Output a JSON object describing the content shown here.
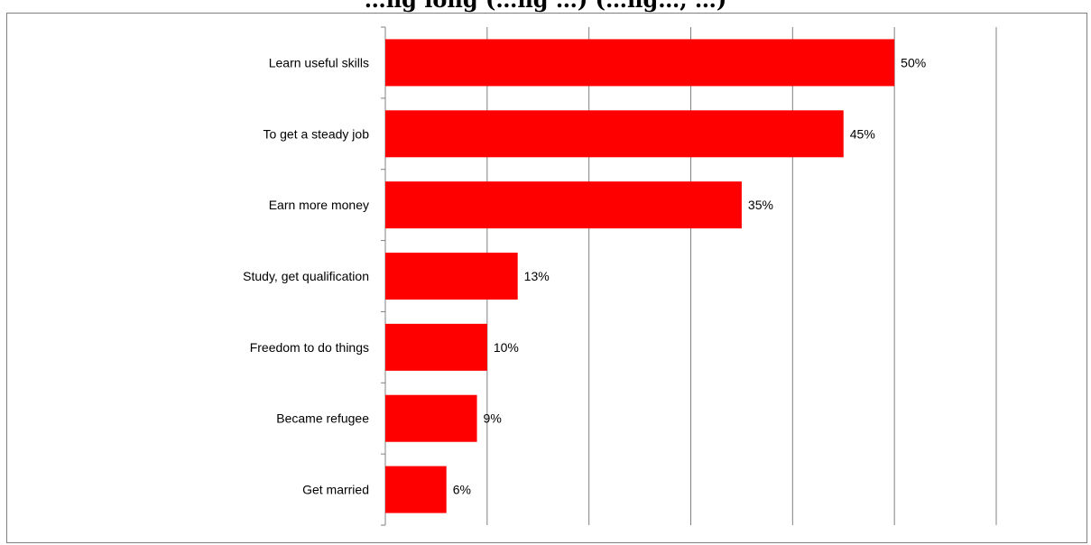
{
  "chart_data": {
    "type": "bar",
    "orientation": "horizontal",
    "title": "…ng long (…ng …) (…ng…, …)",
    "categories": [
      "Learn useful skills",
      "To get a steady job",
      "Earn more money",
      "Study, get qualification",
      "Freedom to do things",
      "Became refugee",
      "Get married"
    ],
    "values": [
      50,
      45,
      35,
      13,
      10,
      9,
      6
    ],
    "data_labels": [
      "50%",
      "45%",
      "35%",
      "13%",
      "10%",
      "9%",
      "6%"
    ],
    "xlim": [
      0,
      60
    ],
    "grid": true,
    "bar_color": "#ff0000",
    "gridline_color": "#808080"
  }
}
